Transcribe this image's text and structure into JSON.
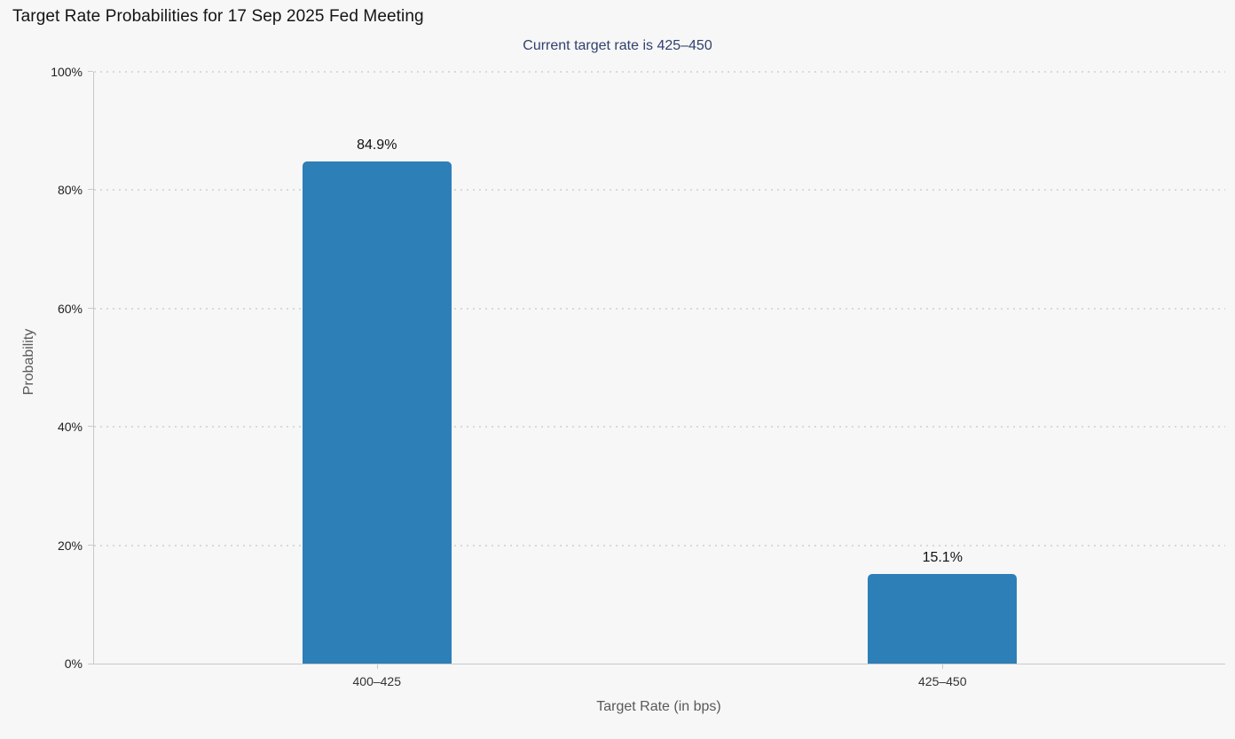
{
  "chart_data": {
    "type": "bar",
    "title": "Target Rate Probabilities for 17 Sep 2025 Fed Meeting",
    "subtitle": "Current target rate is 425–450",
    "categories": [
      "400–425",
      "425–450"
    ],
    "values": [
      84.9,
      15.1
    ],
    "value_labels": [
      "84.9%",
      "15.1%"
    ],
    "xlabel": "Target Rate (in bps)",
    "ylabel": "Probability",
    "ylim": [
      0,
      100
    ],
    "yticks": [
      0,
      20,
      40,
      60,
      80,
      100
    ],
    "ytick_labels": [
      "0%",
      "20%",
      "40%",
      "60%",
      "80%",
      "100%"
    ],
    "grid": true,
    "gridline_style": "dotted",
    "legend": false,
    "colors": {
      "bar": "#2d7fb8",
      "title": "#141414",
      "subtitle": "#32406e",
      "axis_line": "#c9c9c9",
      "gridline": "#d9d9d9",
      "background": "#f7f7f7"
    }
  }
}
